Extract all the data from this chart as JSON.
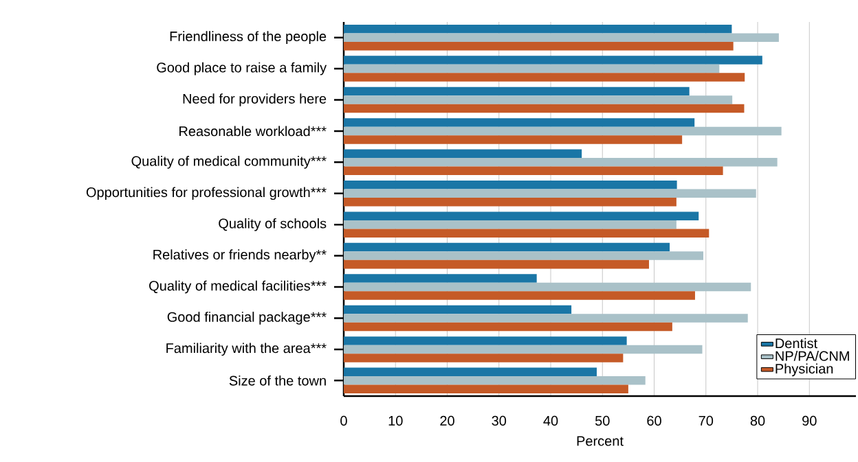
{
  "chart_data": {
    "type": "bar",
    "orientation": "horizontal",
    "xlabel": "Percent",
    "categories": [
      "Friendliness of the people",
      "Good place to raise a family",
      "Need for providers here",
      "Reasonable workload***",
      "Quality of medical community***",
      "Opportunities for professional growth***",
      "Quality of schools",
      "Relatives or friends nearby**",
      "Quality of medical facilities***",
      "Good financial package***",
      "Familiarity with the area***",
      "Size of the town"
    ],
    "series": [
      {
        "name": "Dentist",
        "color": "#1a76a6",
        "values": [
          75.0,
          80.9,
          66.8,
          67.8,
          46.0,
          64.4,
          68.6,
          63.0,
          37.3,
          44.0,
          54.7,
          48.9
        ]
      },
      {
        "name": "NP/PA/CNM",
        "color": "#a9c1c8",
        "values": [
          84.1,
          72.6,
          75.1,
          84.6,
          83.8,
          79.7,
          64.3,
          69.5,
          78.7,
          78.1,
          69.3,
          58.3
        ]
      },
      {
        "name": "Physician",
        "color": "#c55a27",
        "values": [
          75.3,
          77.5,
          77.4,
          65.4,
          73.3,
          64.3,
          70.6,
          59.0,
          67.9,
          63.5,
          54.0,
          55.0
        ]
      }
    ],
    "xlim": [
      0,
      99
    ],
    "xticks": [
      0,
      10,
      20,
      30,
      40,
      50,
      60,
      70,
      80,
      90
    ],
    "grid": "x",
    "legend": "bottom right"
  }
}
